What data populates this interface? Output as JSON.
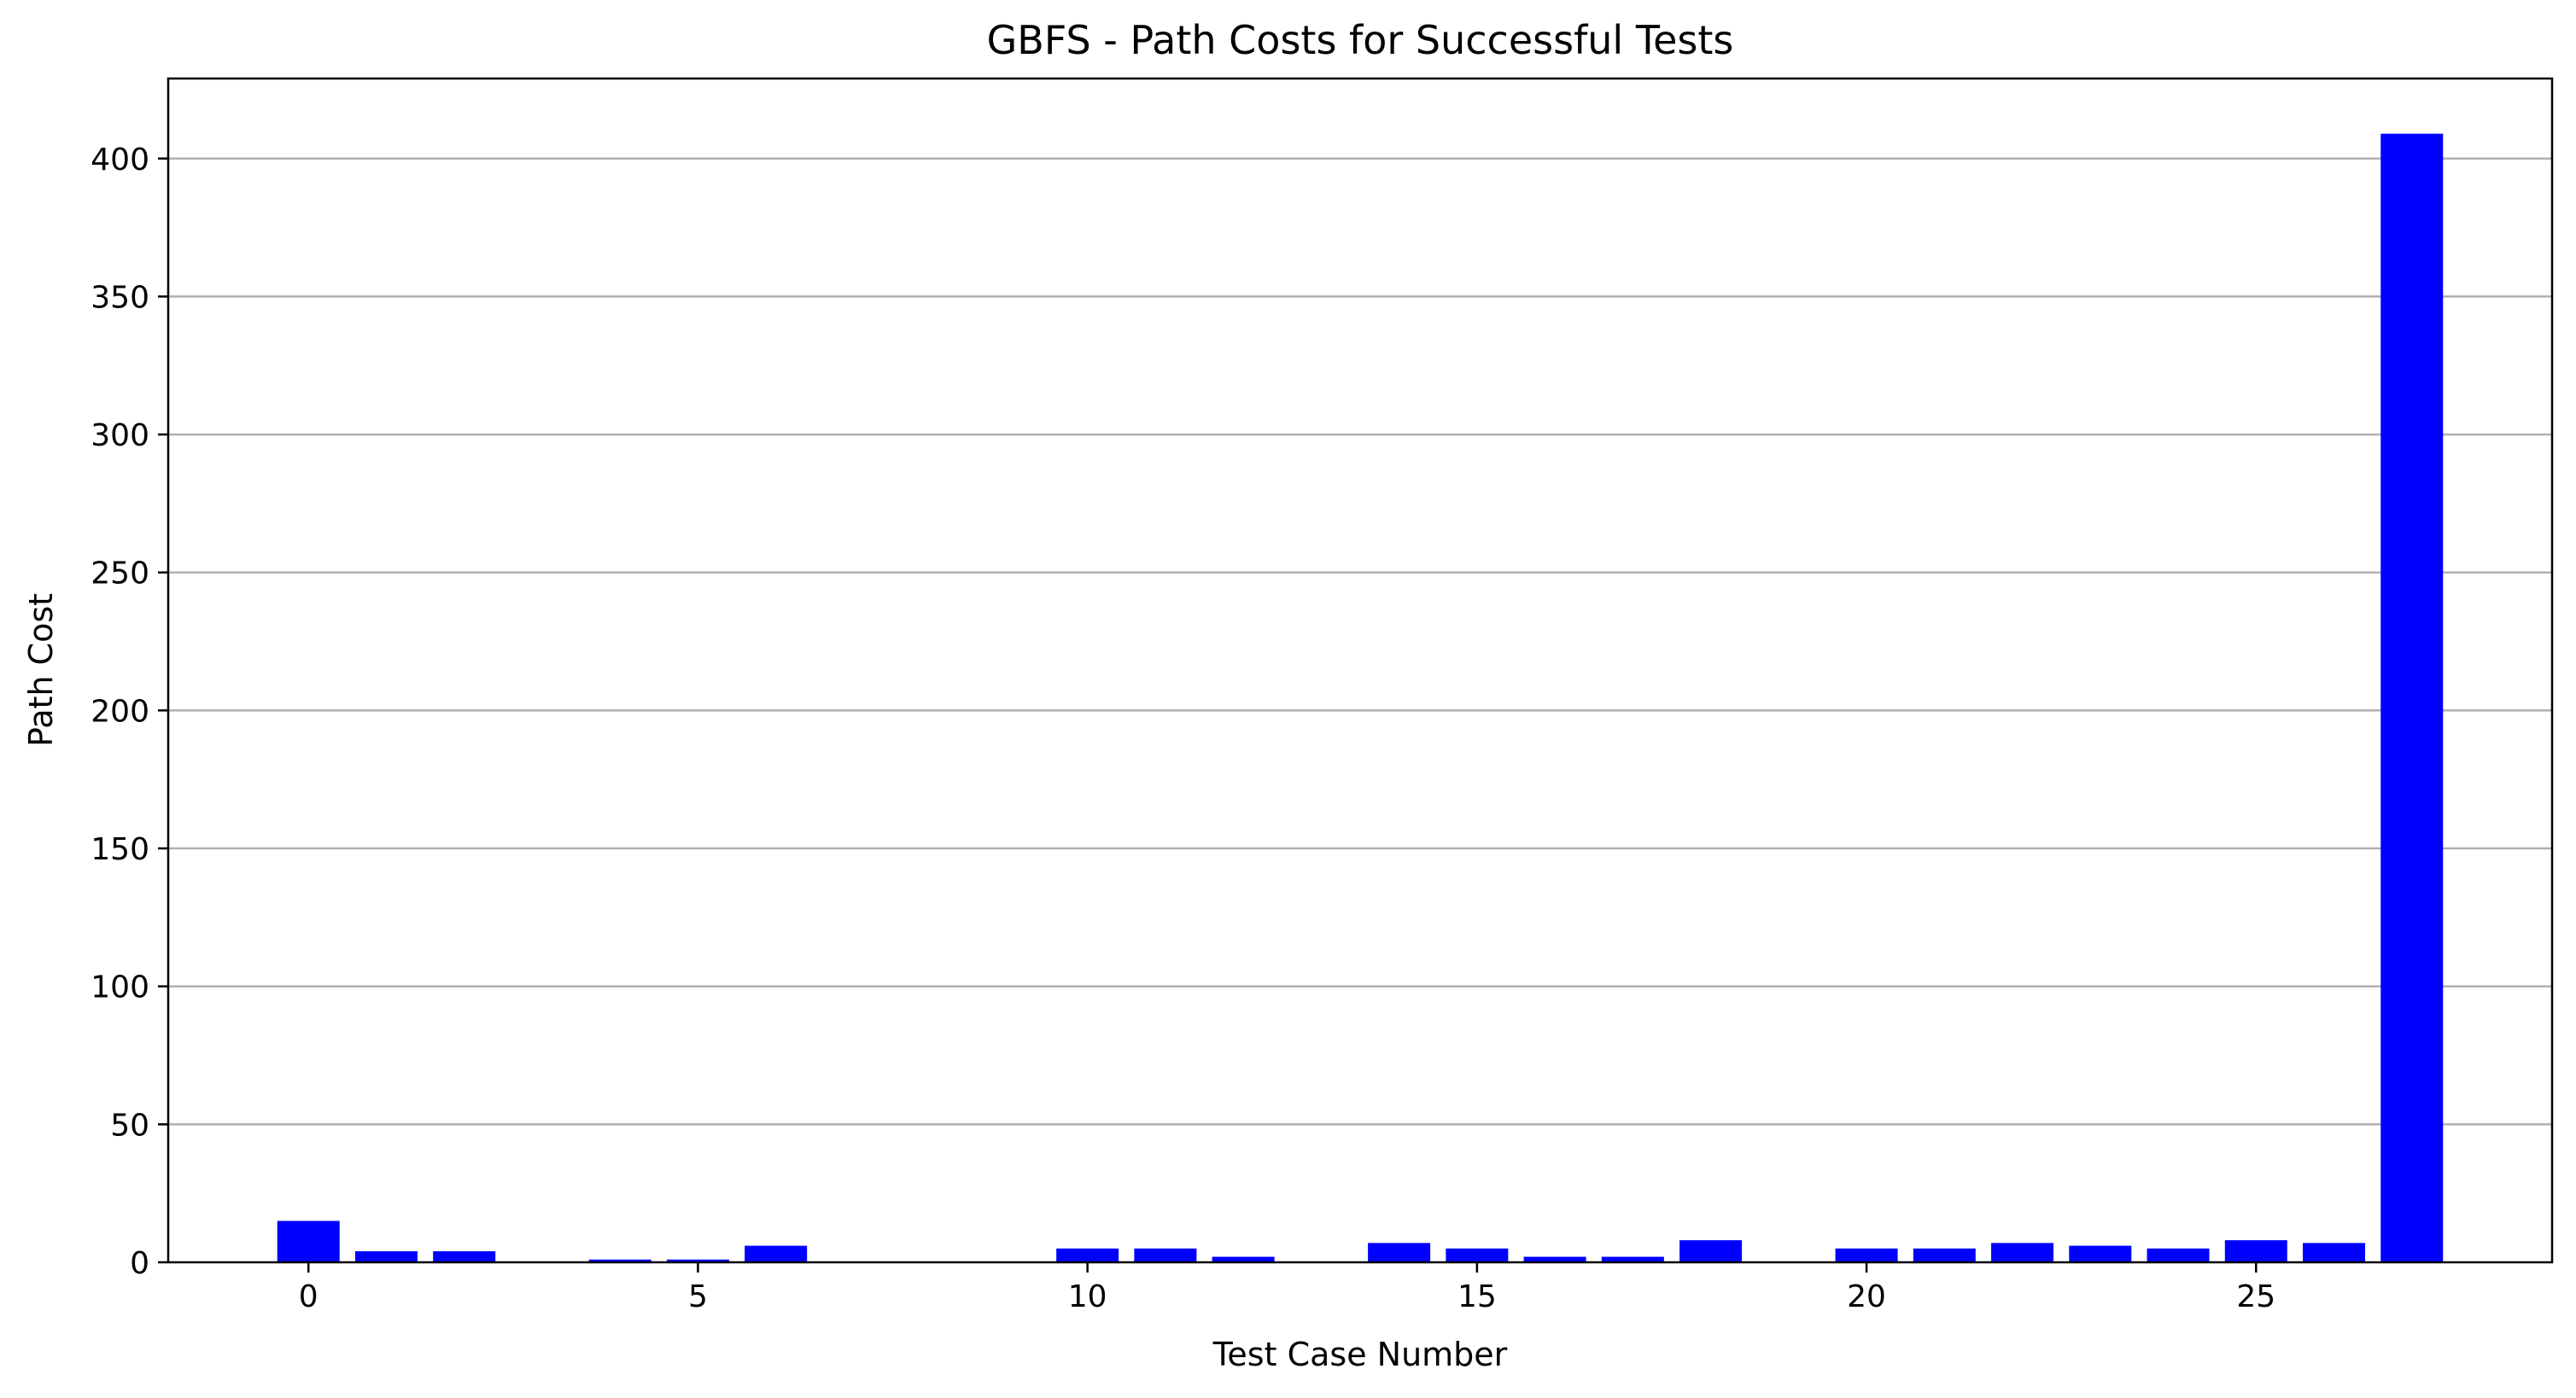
{
  "chart_data": {
    "type": "bar",
    "title": "GBFS - Path Costs for Successful Tests",
    "xlabel": "Test Case Number",
    "ylabel": "Path Cost",
    "x": [
      0,
      1,
      2,
      4,
      5,
      6,
      10,
      11,
      12,
      14,
      15,
      16,
      17,
      18,
      20,
      21,
      22,
      23,
      24,
      25,
      26,
      27
    ],
    "values": [
      15,
      4,
      4,
      1,
      1,
      6,
      5,
      5,
      2,
      7,
      5,
      2,
      2,
      8,
      5,
      5,
      7,
      6,
      5,
      8,
      7,
      409
    ],
    "xlim": [
      -1.8,
      28.8
    ],
    "ylim": [
      0,
      429
    ],
    "xticks": [
      0,
      5,
      10,
      15,
      20,
      25
    ],
    "xtick_labels": [
      "0",
      "5",
      "10",
      "15",
      "20",
      "25"
    ],
    "yticks": [
      0,
      50,
      100,
      150,
      200,
      250,
      300,
      350,
      400
    ],
    "ytick_labels": [
      "0",
      "50",
      "100",
      "150",
      "200",
      "250",
      "300",
      "350",
      "400"
    ],
    "grid": "y-axis major",
    "bar_color": "#0000ff",
    "grid_color": "#b0b0b0"
  }
}
